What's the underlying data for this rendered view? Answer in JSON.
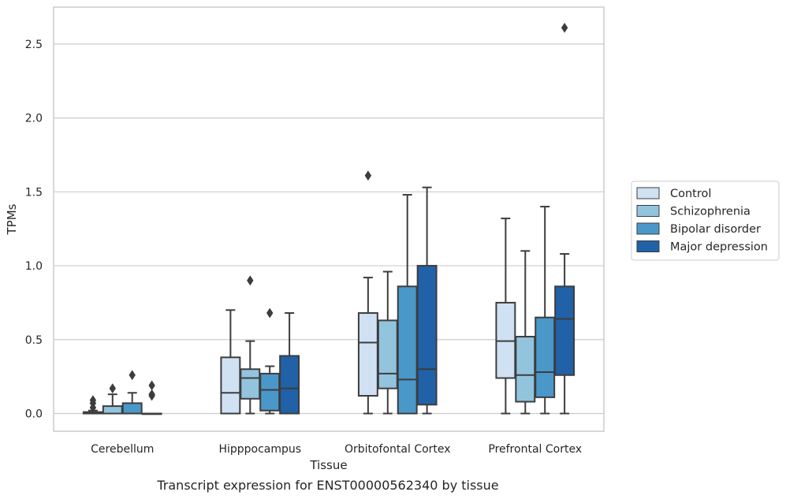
{
  "caption": "Transcript expression for ENST00000562340 by tissue",
  "chart_data": {
    "type": "box",
    "xlabel": "Tissue",
    "ylabel": "TPMs",
    "ylim": [
      -0.12,
      2.75
    ],
    "yticks": [
      0.0,
      0.5,
      1.0,
      1.5,
      2.0,
      2.5
    ],
    "ytick_labels": [
      "0.0",
      "0.5",
      "1.0",
      "1.5",
      "2.0",
      "2.5"
    ],
    "grid": "horizontal",
    "legend_position": "right",
    "categories": [
      "Cerebellum",
      "Hipppocampus",
      "Orbitofontal Cortex",
      "Prefrontal Cortex"
    ],
    "series": [
      {
        "name": "Control",
        "color": "#cfe1f2",
        "boxes": [
          {
            "whislo": 0.0,
            "q1": 0.0,
            "med": 0.0,
            "q3": 0.01,
            "whishi": 0.02,
            "fliers": [
              0.04,
              0.07,
              0.09
            ]
          },
          {
            "whislo": 0.0,
            "q1": 0.0,
            "med": 0.14,
            "q3": 0.38,
            "whishi": 0.7,
            "fliers": []
          },
          {
            "whislo": 0.0,
            "q1": 0.12,
            "med": 0.48,
            "q3": 0.68,
            "whishi": 0.92,
            "fliers": [
              1.61
            ]
          },
          {
            "whislo": 0.0,
            "q1": 0.24,
            "med": 0.49,
            "q3": 0.75,
            "whishi": 1.32,
            "fliers": []
          }
        ]
      },
      {
        "name": "Schizophrenia",
        "color": "#93c4de",
        "boxes": [
          {
            "whislo": 0.0,
            "q1": 0.0,
            "med": 0.0,
            "q3": 0.05,
            "whishi": 0.13,
            "fliers": [
              0.17
            ]
          },
          {
            "whislo": 0.0,
            "q1": 0.1,
            "med": 0.24,
            "q3": 0.3,
            "whishi": 0.49,
            "fliers": [
              0.9
            ]
          },
          {
            "whislo": 0.0,
            "q1": 0.17,
            "med": 0.27,
            "q3": 0.63,
            "whishi": 0.96,
            "fliers": []
          },
          {
            "whislo": 0.0,
            "q1": 0.08,
            "med": 0.26,
            "q3": 0.52,
            "whishi": 1.1,
            "fliers": []
          }
        ]
      },
      {
        "name": "Bipolar disorder",
        "color": "#4a98c9",
        "boxes": [
          {
            "whislo": 0.0,
            "q1": 0.0,
            "med": 0.0,
            "q3": 0.07,
            "whishi": 0.14,
            "fliers": [
              0.26
            ]
          },
          {
            "whislo": 0.0,
            "q1": 0.02,
            "med": 0.16,
            "q3": 0.27,
            "whishi": 0.32,
            "fliers": [
              0.68
            ]
          },
          {
            "whislo": 0.0,
            "q1": 0.0,
            "med": 0.23,
            "q3": 0.86,
            "whishi": 1.48,
            "fliers": []
          },
          {
            "whislo": 0.0,
            "q1": 0.11,
            "med": 0.28,
            "q3": 0.65,
            "whishi": 1.4,
            "fliers": []
          }
        ]
      },
      {
        "name": "Major depression",
        "color": "#2161a8",
        "boxes": [
          {
            "whislo": 0.0,
            "q1": 0.0,
            "med": 0.0,
            "q3": 0.0,
            "whishi": 0.0,
            "fliers": [
              0.12,
              0.13,
              0.19
            ]
          },
          {
            "whislo": 0.0,
            "q1": 0.0,
            "med": 0.17,
            "q3": 0.39,
            "whishi": 0.68,
            "fliers": []
          },
          {
            "whislo": 0.0,
            "q1": 0.06,
            "med": 0.3,
            "q3": 1.0,
            "whishi": 1.53,
            "fliers": []
          },
          {
            "whislo": 0.0,
            "q1": 0.26,
            "med": 0.64,
            "q3": 0.86,
            "whishi": 1.08,
            "fliers": [
              2.61
            ]
          }
        ]
      }
    ]
  }
}
